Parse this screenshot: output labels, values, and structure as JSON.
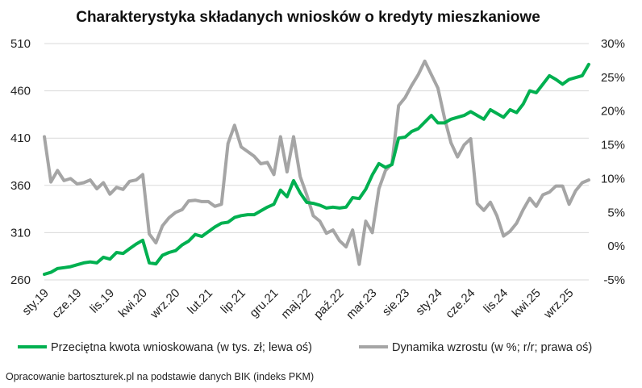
{
  "chart_data": {
    "type": "line",
    "title": "Charakterystyka składanych wniosków o kredyty mieszkaniowe",
    "x_labels": [
      "sty.19",
      "cze.19",
      "lis.19",
      "kwi.20",
      "wrz.20",
      "lut.21",
      "lip.21",
      "gru.21",
      "maj.22",
      "paź.22",
      "mar.23",
      "sie.23",
      "sty.24",
      "cze.24",
      "lis.24",
      "kwi.25",
      "wrz.25"
    ],
    "y_left": {
      "min": 260,
      "max": 510,
      "ticks": [
        "260",
        "310",
        "360",
        "410",
        "460",
        "510"
      ]
    },
    "y_right": {
      "min": -5,
      "max": 30,
      "ticks": [
        "-5%",
        "0%",
        "5%",
        "10%",
        "15%",
        "20%",
        "25%",
        "30%"
      ]
    },
    "legend_position": "bottom",
    "series": [
      {
        "name": "Przeciętna kwota wnioskowana (w tys. zł; lewa oś)",
        "axis": "left",
        "color": "#00b050",
        "values": [
          266,
          268,
          272,
          273,
          274,
          276,
          278,
          279,
          278,
          284,
          282,
          289,
          288,
          293,
          298,
          302,
          278,
          277,
          286,
          289,
          291,
          297,
          301,
          308,
          306,
          311,
          316,
          320,
          321,
          326,
          328,
          329,
          329,
          333,
          337,
          340,
          355,
          348,
          365,
          352,
          342,
          341,
          339,
          336,
          337,
          336,
          337,
          347,
          346,
          356,
          371,
          383,
          379,
          382,
          410,
          411,
          417,
          420,
          427,
          434,
          426,
          426,
          430,
          432,
          434,
          438,
          434,
          430,
          440,
          436,
          432,
          440,
          437,
          446,
          460,
          458,
          467,
          476,
          472,
          467,
          472,
          474,
          476,
          488
        ]
      },
      {
        "name": "Dynamika wzrostu (w %; r/r; prawa oś)",
        "axis": "right",
        "color": "#a5a5a5",
        "values": [
          16.2,
          9.5,
          11.2,
          9.7,
          10.0,
          9.2,
          9.4,
          9.8,
          8.5,
          9.4,
          7.7,
          8.7,
          8.4,
          9.6,
          9.8,
          10.6,
          1.8,
          0.5,
          3.0,
          4.2,
          5.0,
          5.4,
          6.7,
          6.8,
          6.6,
          6.6,
          5.9,
          6.2,
          15.2,
          17.9,
          14.7,
          14.0,
          13.3,
          12.2,
          12.4,
          10.6,
          16.2,
          11.0,
          16.2,
          10.3,
          7.6,
          4.5,
          3.7,
          1.9,
          2.4,
          0.8,
          -0.1,
          2.4,
          -2.7,
          3.7,
          2.0,
          8.5,
          11.2,
          12.2,
          20.8,
          22.0,
          23.8,
          25.4,
          27.4,
          25.4,
          23.4,
          19.0,
          15.3,
          13.2,
          15.0,
          15.9,
          6.3,
          5.3,
          6.5,
          4.5,
          1.5,
          2.2,
          3.4,
          5.4,
          7.1,
          5.9,
          7.6,
          8.0,
          8.9,
          8.9,
          6.2,
          8.2,
          9.4,
          9.8
        ]
      }
    ]
  },
  "source_note": "Opracowanie bartoszturek.pl na podstawie danych BIK (indeks PKM)"
}
